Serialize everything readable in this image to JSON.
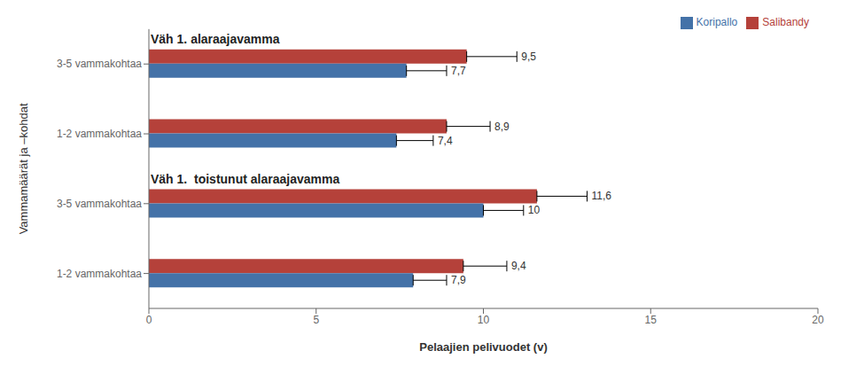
{
  "chart_data": {
    "type": "bar",
    "orientation": "horizontal",
    "categories": [
      "1-2 vammakohtaa",
      "3-5 vammakohtaa",
      "1-2 vammakohtaa",
      "3-5 vammakohtaa"
    ],
    "series": [
      {
        "name": "Salibandy",
        "color": "#b5413a",
        "values": [
          9.4,
          11.6,
          8.9,
          9.5
        ],
        "value_labels": [
          "9,4",
          "11,6",
          "8,9",
          "9,5"
        ],
        "errors": [
          1.3,
          1.5,
          1.3,
          1.5
        ]
      },
      {
        "name": "Koripallo",
        "color": "#4472a8",
        "values": [
          7.9,
          10.0,
          7.4,
          7.7
        ],
        "value_labels": [
          "7,9",
          "10",
          "7,4",
          "7,7"
        ],
        "errors": [
          1.0,
          1.2,
          1.1,
          1.2
        ]
      }
    ],
    "annotations": [
      "Väh 1. alaraajavamma",
      "Väh 1.  toistunut alaraajavamma"
    ],
    "xlabel": "Pelaajien pelivuodet (v)",
    "ylabel": "Vammamäärät ja –kohdat",
    "xlim": [
      0,
      20
    ],
    "xticks": [
      0,
      5,
      10,
      15,
      20
    ],
    "legend": "upper right",
    "grid": false,
    "data_labels": true
  }
}
